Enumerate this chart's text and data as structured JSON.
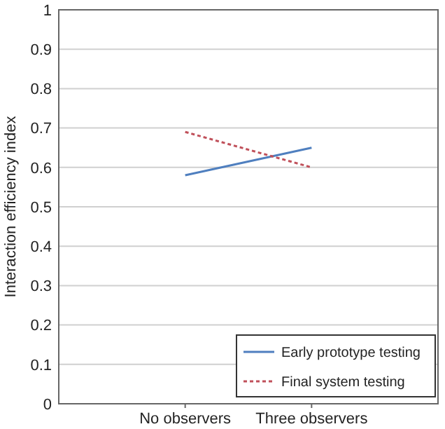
{
  "chart_data": {
    "type": "line",
    "ylabel": "Interaction efficiency index",
    "categories": [
      "No observers",
      "Three observers"
    ],
    "series": [
      {
        "name": "Early prototype testing",
        "color": "#4f7fbf",
        "values": [
          0.58,
          0.65
        ],
        "line_style": "solid"
      },
      {
        "name": "Final system testing",
        "color": "#c0505a",
        "values": [
          0.69,
          0.6
        ],
        "line_style": "dashed"
      }
    ],
    "ylim": [
      0,
      1
    ],
    "yticks": [
      0,
      0.1,
      0.2,
      0.3,
      0.4,
      0.5,
      0.6,
      0.7,
      0.8,
      0.9,
      1
    ],
    "grid": "y",
    "legend": "bottom right",
    "marker": "none"
  }
}
